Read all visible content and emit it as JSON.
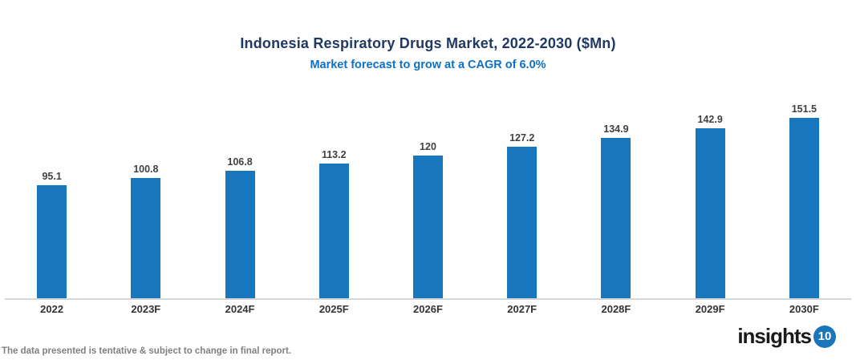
{
  "header": {
    "title": "Indonesia Respiratory Drugs Market, 2022-2030 ($Mn)",
    "subtitle": "Market forecast to grow at a CAGR of 6.0%"
  },
  "chart_data": {
    "type": "bar",
    "categories": [
      "2022",
      "2023F",
      "2024F",
      "2025F",
      "2026F",
      "2027F",
      "2028F",
      "2029F",
      "2030F"
    ],
    "values": [
      95.1,
      100.8,
      106.8,
      113.2,
      120,
      127.2,
      134.9,
      142.9,
      151.5
    ],
    "value_labels": [
      "95.1",
      "100.8",
      "106.8",
      "113.2",
      "120",
      "127.2",
      "134.9",
      "142.9",
      "151.5"
    ],
    "title": "Indonesia Respiratory Drugs Market, 2022-2030 ($Mn)",
    "subtitle": "Market forecast to grow at a CAGR of 6.0%",
    "xlabel": "",
    "ylabel": "",
    "ylim": [
      0,
      160
    ],
    "grid": false,
    "legend": false,
    "bar_color": "#1776BC",
    "value_labels_position": "above-bars"
  },
  "footer": {
    "disclaimer": "The data presented is tentative & subject to change in final report.",
    "logo_text": "insights",
    "logo_badge": "10"
  },
  "colors": {
    "title_text": "#1F3864",
    "subtitle_text": "#0F70C8",
    "bar": "#1776BC",
    "axis_line": "#D6D6D6",
    "value_label": "#404040",
    "category_label": "#333333",
    "disclaimer": "#808080",
    "logo_text": "#1A1A1A",
    "logo_badge_bg": "#1B75BB",
    "logo_badge_text": "#FFFFFF"
  }
}
